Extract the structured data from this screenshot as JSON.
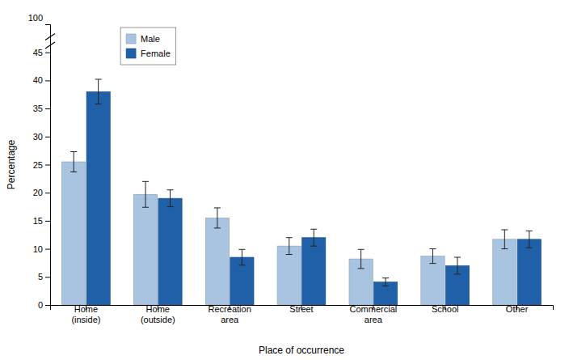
{
  "chart_data": {
    "type": "bar",
    "categories": [
      "Home\n(inside)",
      "Home\n(outside)",
      "Recreation\narea",
      "Street",
      "Commercial\narea",
      "School",
      "Other"
    ],
    "series": [
      {
        "name": "Male",
        "color": "#a8c4e0",
        "values": [
          25.5,
          19.7,
          15.5,
          10.5,
          8.2,
          8.7,
          11.7
        ],
        "errors": [
          1.8,
          2.3,
          1.8,
          1.5,
          1.7,
          1.3,
          1.7
        ]
      },
      {
        "name": "Female",
        "color": "#2060a8",
        "values": [
          38.0,
          19.0,
          8.5,
          12.0,
          4.1,
          7.0,
          11.7
        ],
        "errors": [
          2.2,
          1.5,
          1.4,
          1.5,
          0.7,
          1.5,
          1.5
        ]
      }
    ],
    "xlabel": "Place of occurrence",
    "ylabel": "Percentage",
    "ylim": [
      0,
      50
    ],
    "yticks": [
      0,
      5,
      10,
      15,
      20,
      25,
      30,
      35,
      40,
      45
    ],
    "annotations": [
      "100"
    ],
    "legend": "upper left",
    "grid": false
  }
}
